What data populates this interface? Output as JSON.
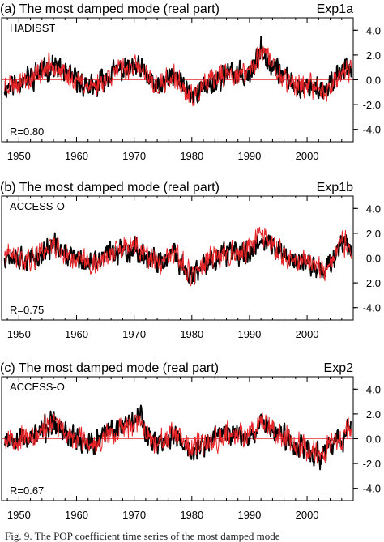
{
  "figure_caption": "Fig. 9. The POP coefficient time series of the most damped mode",
  "colors": {
    "observed": "#000000",
    "model": "#e8262a",
    "zero_line": "#e8262a",
    "axis": "#000000"
  },
  "chart_data": [
    {
      "type": "line",
      "title": "(a) The most damped mode (real part)",
      "experiment": "Exp1a",
      "dataset_label": "HADISST",
      "correlation_label": "R=0.80",
      "xlim": [
        1947,
        2008
      ],
      "ylim": [
        -5,
        5
      ],
      "x_ticks": [
        1950,
        1960,
        1970,
        1980,
        1990,
        2000
      ],
      "y_ticks": [
        4.0,
        2.0,
        0.0,
        -2.0,
        -4.0
      ],
      "y_tick_labels": [
        "4.0",
        "2.0",
        "0.0",
        "-2.0",
        "-4.0"
      ],
      "series": [
        {
          "color": "#000000",
          "seed": 11,
          "anchors": [
            [
              1948,
              -0.5
            ],
            [
              1952,
              0.2
            ],
            [
              1956,
              1.2
            ],
            [
              1958,
              0.5
            ],
            [
              1963,
              -0.8
            ],
            [
              1966,
              0.6
            ],
            [
              1970,
              1.0
            ],
            [
              1972,
              0.4
            ],
            [
              1974,
              -0.8
            ],
            [
              1977,
              0.4
            ],
            [
              1980,
              -1.2
            ],
            [
              1983,
              -0.4
            ],
            [
              1986,
              0.5
            ],
            [
              1989,
              0.3
            ],
            [
              1991,
              0.9
            ],
            [
              1992,
              2.8
            ],
            [
              1993,
              1.8
            ],
            [
              1995,
              0.7
            ],
            [
              1998,
              -0.6
            ],
            [
              2001,
              -0.4
            ],
            [
              2003,
              -1.2
            ],
            [
              2005,
              0.4
            ],
            [
              2007,
              1.1
            ]
          ]
        },
        {
          "color": "#e8262a",
          "seed": 23,
          "anchors": [
            [
              1948,
              -0.4
            ],
            [
              1952,
              0.1
            ],
            [
              1956,
              1.4
            ],
            [
              1958,
              0.3
            ],
            [
              1963,
              -0.6
            ],
            [
              1966,
              0.5
            ],
            [
              1970,
              1.2
            ],
            [
              1972,
              0.3
            ],
            [
              1974,
              -0.6
            ],
            [
              1977,
              0.2
            ],
            [
              1980,
              -1.5
            ],
            [
              1983,
              -0.2
            ],
            [
              1986,
              0.4
            ],
            [
              1989,
              0.5
            ],
            [
              1991,
              1.1
            ],
            [
              1992,
              2.5
            ],
            [
              1993,
              2.0
            ],
            [
              1995,
              0.5
            ],
            [
              1998,
              -0.4
            ],
            [
              2001,
              -0.5
            ],
            [
              2003,
              -1.0
            ],
            [
              2005,
              0.2
            ],
            [
              2007,
              0.9
            ]
          ]
        }
      ]
    },
    {
      "type": "line",
      "title": "(b) The most damped mode (real part)",
      "experiment": "Exp1b",
      "dataset_label": "ACCESS-O",
      "correlation_label": "R=0.75",
      "xlim": [
        1947,
        2008
      ],
      "ylim": [
        -5,
        5
      ],
      "x_ticks": [
        1950,
        1960,
        1970,
        1980,
        1990,
        2000
      ],
      "y_ticks": [
        4.0,
        2.0,
        0.0,
        -2.0,
        -4.0
      ],
      "y_tick_labels": [
        "4.0",
        "2.0",
        "0.0",
        "-2.0",
        "-4.0"
      ],
      "series": [
        {
          "color": "#000000",
          "seed": 37,
          "anchors": [
            [
              1948,
              0.3
            ],
            [
              1952,
              -0.2
            ],
            [
              1956,
              1.0
            ],
            [
              1958,
              0.3
            ],
            [
              1963,
              -0.6
            ],
            [
              1966,
              0.5
            ],
            [
              1970,
              0.8
            ],
            [
              1972,
              0.2
            ],
            [
              1974,
              -0.6
            ],
            [
              1977,
              0.3
            ],
            [
              1980,
              -1.6
            ],
            [
              1983,
              -0.3
            ],
            [
              1986,
              0.4
            ],
            [
              1989,
              0.3
            ],
            [
              1991,
              0.8
            ],
            [
              1992,
              1.9
            ],
            [
              1993,
              1.2
            ],
            [
              1995,
              0.6
            ],
            [
              1998,
              -0.3
            ],
            [
              2001,
              -0.6
            ],
            [
              2003,
              -1.0
            ],
            [
              2005,
              0.3
            ],
            [
              2006,
              1.9
            ],
            [
              2007,
              1.0
            ]
          ]
        },
        {
          "color": "#e8262a",
          "seed": 41,
          "anchors": [
            [
              1948,
              0.2
            ],
            [
              1952,
              -0.1
            ],
            [
              1956,
              1.3
            ],
            [
              1958,
              0.2
            ],
            [
              1963,
              -0.5
            ],
            [
              1966,
              0.4
            ],
            [
              1970,
              1.0
            ],
            [
              1972,
              0.2
            ],
            [
              1974,
              -0.5
            ],
            [
              1977,
              0.2
            ],
            [
              1980,
              -1.4
            ],
            [
              1983,
              -0.2
            ],
            [
              1986,
              0.5
            ],
            [
              1989,
              0.4
            ],
            [
              1991,
              1.2
            ],
            [
              1992,
              2.2
            ],
            [
              1993,
              1.5
            ],
            [
              1995,
              0.4
            ],
            [
              1998,
              -0.2
            ],
            [
              2001,
              -0.4
            ],
            [
              2003,
              -0.8
            ],
            [
              2005,
              0.1
            ],
            [
              2006,
              1.5
            ],
            [
              2007,
              0.8
            ]
          ]
        }
      ]
    },
    {
      "type": "line",
      "title": "(c) The most damped mode (real part)",
      "experiment": "Exp2",
      "dataset_label": "ACCESS-O",
      "correlation_label": "R=0.67",
      "xlim": [
        1947,
        2008
      ],
      "ylim": [
        -5,
        5
      ],
      "x_ticks": [
        1950,
        1960,
        1970,
        1980,
        1990,
        2000
      ],
      "y_ticks": [
        4.0,
        2.0,
        0.0,
        -2.0,
        -4.0
      ],
      "y_tick_labels": [
        "4.0",
        "2.0",
        "0.0",
        "-2.0",
        "-4.0"
      ],
      "series": [
        {
          "color": "#000000",
          "seed": 53,
          "anchors": [
            [
              1948,
              0.2
            ],
            [
              1952,
              0.0
            ],
            [
              1956,
              1.2
            ],
            [
              1958,
              0.4
            ],
            [
              1963,
              -0.5
            ],
            [
              1966,
              0.7
            ],
            [
              1971,
              2.0
            ],
            [
              1972,
              0.6
            ],
            [
              1974,
              -0.4
            ],
            [
              1977,
              0.3
            ],
            [
              1980,
              -1.2
            ],
            [
              1983,
              -0.2
            ],
            [
              1986,
              0.6
            ],
            [
              1989,
              0.2
            ],
            [
              1991,
              0.6
            ],
            [
              1992,
              1.5
            ],
            [
              1995,
              0.4
            ],
            [
              1998,
              -0.4
            ],
            [
              2001,
              -1.2
            ],
            [
              2003,
              -1.5
            ],
            [
              2005,
              0.2
            ],
            [
              2006,
              -0.8
            ],
            [
              2007,
              1.2
            ]
          ]
        },
        {
          "color": "#e8262a",
          "seed": 67,
          "anchors": [
            [
              1948,
              0.1
            ],
            [
              1952,
              -0.1
            ],
            [
              1956,
              1.5
            ],
            [
              1958,
              0.3
            ],
            [
              1963,
              -0.4
            ],
            [
              1966,
              0.5
            ],
            [
              1971,
              1.4
            ],
            [
              1972,
              0.4
            ],
            [
              1974,
              -0.3
            ],
            [
              1977,
              0.2
            ],
            [
              1980,
              -0.9
            ],
            [
              1983,
              -0.1
            ],
            [
              1986,
              0.4
            ],
            [
              1989,
              0.3
            ],
            [
              1991,
              0.9
            ],
            [
              1992,
              1.8
            ],
            [
              1995,
              0.3
            ],
            [
              1998,
              -0.3
            ],
            [
              2001,
              -0.8
            ],
            [
              2003,
              -1.1
            ],
            [
              2005,
              0.1
            ],
            [
              2006,
              -0.4
            ],
            [
              2007,
              0.8
            ]
          ]
        }
      ]
    }
  ]
}
